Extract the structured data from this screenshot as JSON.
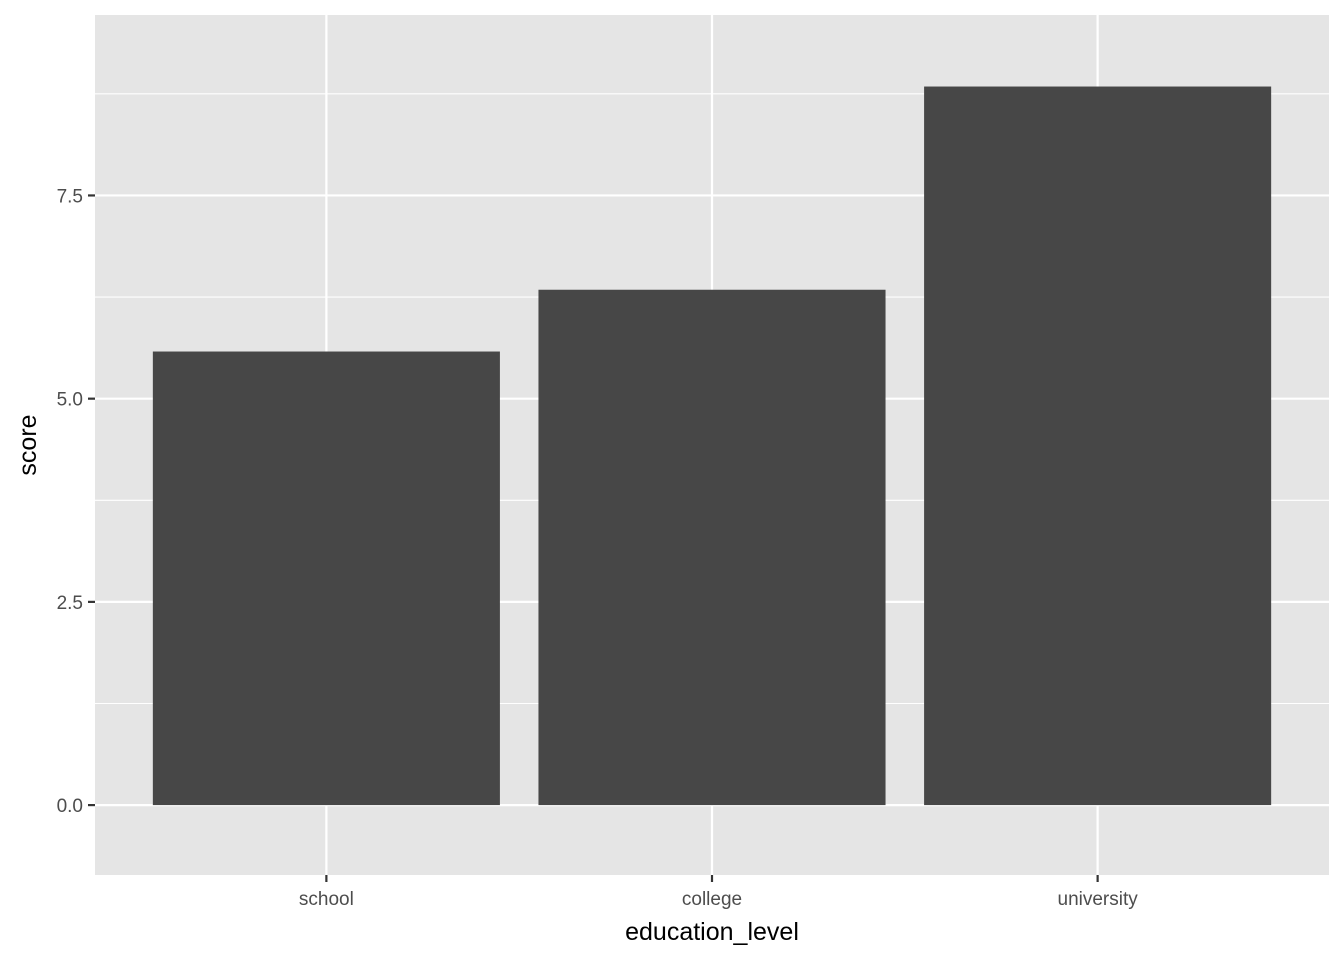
{
  "chart_data": {
    "type": "bar",
    "title": "",
    "xlabel": "education_level",
    "ylabel": "score",
    "categories": [
      "school",
      "college",
      "university"
    ],
    "values": [
      5.58,
      6.34,
      8.84
    ],
    "ylim": [
      -0.86,
      9.72
    ],
    "yticks": [
      0.0,
      2.5,
      5.0,
      7.5
    ],
    "ytick_labels": [
      "0.0",
      "2.5",
      "5.0",
      "7.5"
    ],
    "grid": true,
    "colors": {
      "panel_background": "#e5e5e5",
      "grid_line": "#ffffff",
      "bar_fill": "#474747",
      "tick_mark": "#333333",
      "tick_text": "#4d4d4d"
    }
  }
}
